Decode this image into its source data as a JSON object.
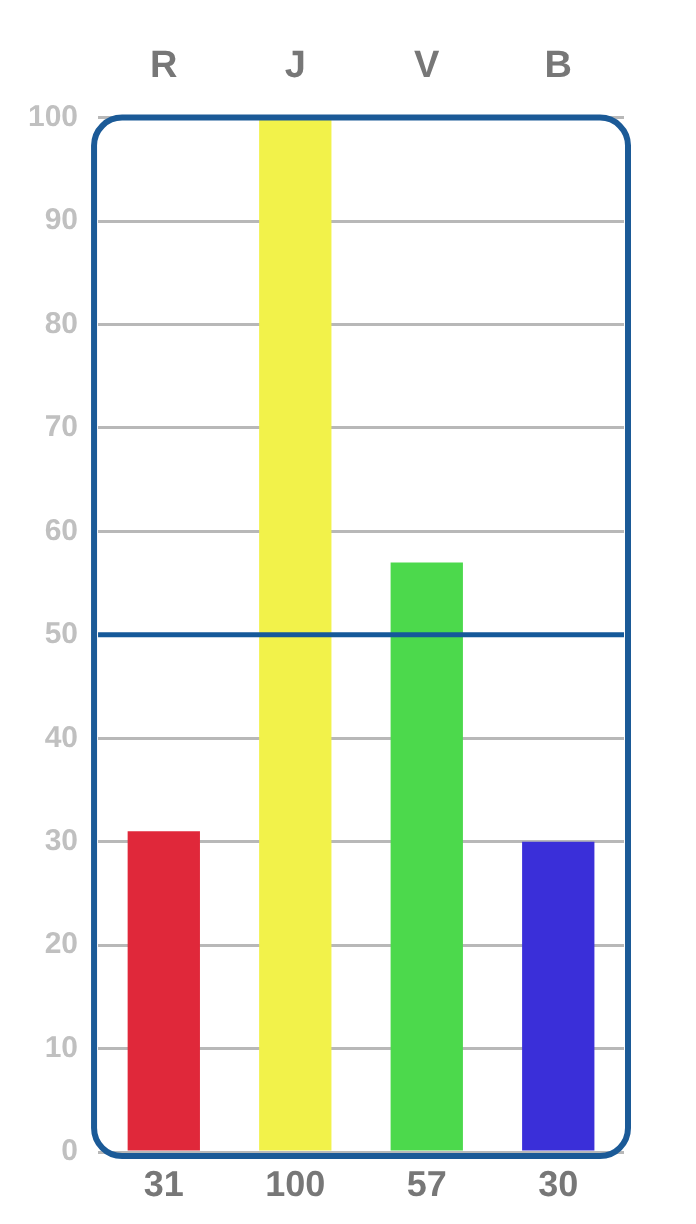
{
  "chart_data": {
    "type": "bar",
    "categories": [
      "R",
      "J",
      "V",
      "B"
    ],
    "values": [
      31,
      100,
      57,
      30
    ],
    "colors": [
      "#e0283a",
      "#f2f24a",
      "#4cd94c",
      "#3a2fd9"
    ],
    "ylim": [
      0,
      100
    ],
    "yticks": [
      0,
      10,
      20,
      30,
      40,
      50,
      60,
      70,
      80,
      90,
      100
    ],
    "grid": "y",
    "data_labels": true,
    "legend": false,
    "ref_lines": [
      {
        "axis": "y",
        "value": 50,
        "color": "#15599a"
      }
    ]
  }
}
